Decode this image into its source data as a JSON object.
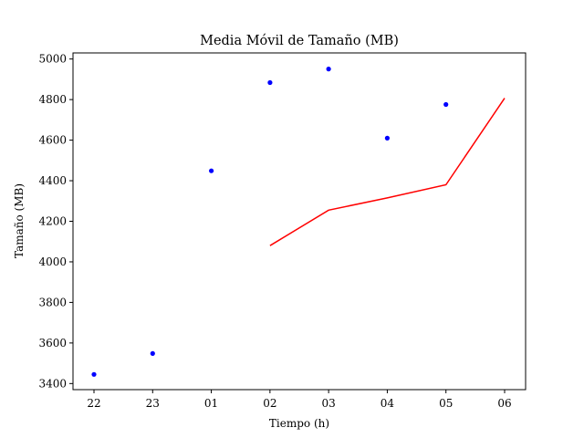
{
  "chart_data": {
    "type": "line",
    "title": "Media Móvil de Tamaño (MB)",
    "xlabel": "Tiempo (h)",
    "ylabel": "Tamaño (MB)",
    "categories": [
      "22",
      "23",
      "01",
      "02",
      "03",
      "04",
      "05",
      "06"
    ],
    "ylim": [
      3370,
      5030
    ],
    "yticks": [
      3400,
      3600,
      3800,
      4000,
      4200,
      4400,
      4600,
      4800,
      5000
    ],
    "grid": false,
    "series": [
      {
        "kind": "scatter",
        "color": "#0000ff",
        "values": [
          3445,
          3548,
          4449,
          4884,
          4951,
          4610,
          4776,
          null
        ]
      },
      {
        "kind": "line",
        "color": "#ff0000",
        "values": [
          null,
          null,
          null,
          4080,
          4255,
          4315,
          4380,
          4807
        ]
      }
    ]
  }
}
